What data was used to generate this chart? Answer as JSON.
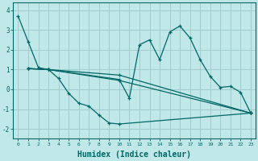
{
  "background_color": "#c0e8e8",
  "grid_color": "#a0cccc",
  "line_color": "#006666",
  "xlabel": "Humidex (Indice chaleur)",
  "xlabel_fontsize": 7,
  "ylim": [
    -2.5,
    4.4
  ],
  "xlim": [
    -0.5,
    23.5
  ],
  "yticks": [
    -2,
    -1,
    0,
    1,
    2,
    3,
    4
  ],
  "xticks": [
    0,
    1,
    2,
    3,
    4,
    5,
    6,
    7,
    8,
    9,
    10,
    11,
    12,
    13,
    14,
    15,
    16,
    17,
    18,
    19,
    20,
    21,
    22,
    23
  ],
  "series": [
    {
      "x": [
        0,
        1,
        2,
        3,
        10,
        11,
        12,
        13,
        14,
        15,
        16,
        17,
        18,
        19,
        20,
        21,
        22,
        23
      ],
      "y": [
        3.7,
        2.4,
        1.1,
        1.0,
        0.5,
        -0.45,
        2.25,
        2.5,
        1.5,
        2.9,
        3.2,
        2.6,
        1.5,
        0.65,
        0.1,
        0.15,
        -0.15,
        -1.2
      ]
    },
    {
      "x": [
        1,
        3,
        4,
        5,
        6,
        7,
        8,
        9,
        10,
        23
      ],
      "y": [
        1.05,
        1.0,
        0.55,
        -0.2,
        -0.7,
        -0.85,
        -1.3,
        -1.7,
        -1.75,
        -1.2
      ]
    },
    {
      "x": [
        1,
        3,
        10,
        23
      ],
      "y": [
        1.05,
        1.0,
        0.72,
        -1.2
      ]
    },
    {
      "x": [
        1,
        3,
        10,
        23
      ],
      "y": [
        1.05,
        1.0,
        0.45,
        -1.2
      ]
    }
  ]
}
